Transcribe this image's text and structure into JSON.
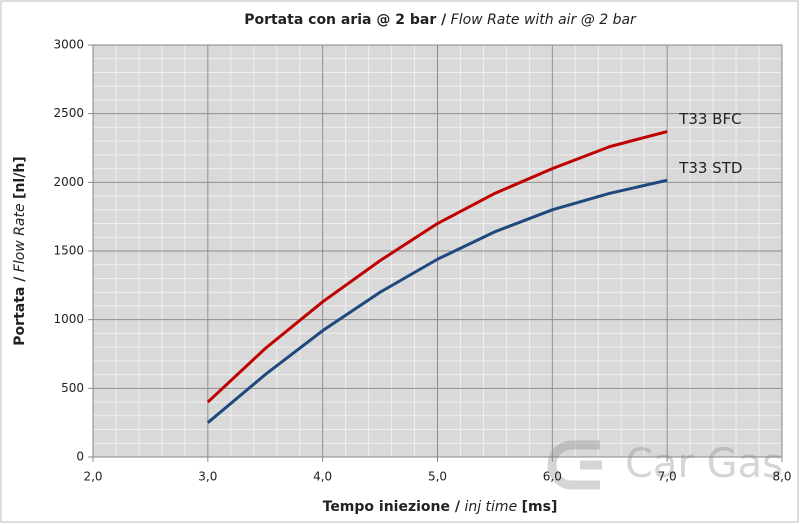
{
  "chart_data": {
    "type": "line",
    "title": {
      "main": "Portata con aria @ 2 bar /",
      "italic": "Flow Rate with air @ 2 bar"
    },
    "x_label": {
      "main": "Tempo iniezione /",
      "italic": "inj time",
      "unit": "[ms]"
    },
    "y_label": {
      "main": "Portata /",
      "italic": "Flow Rate",
      "unit": "[nl/h]"
    },
    "x": [
      3.0,
      3.5,
      4.0,
      4.5,
      5.0,
      5.5,
      6.0,
      6.5,
      7.0
    ],
    "series": [
      {
        "name": "T33 BFC",
        "color": "#c00000",
        "values": [
          400,
          790,
          1130,
          1430,
          1700,
          1920,
          2100,
          2260,
          2370
        ]
      },
      {
        "name": "T33 STD",
        "color": "#1f497d",
        "values": [
          250,
          600,
          920,
          1200,
          1440,
          1640,
          1800,
          1920,
          2015
        ]
      }
    ],
    "xlim": [
      2,
      8
    ],
    "xticks": [
      {
        "value": 2,
        "label": "2,0"
      },
      {
        "value": 3,
        "label": "3,0"
      },
      {
        "value": 4,
        "label": "4,0"
      },
      {
        "value": 5,
        "label": "5,0"
      },
      {
        "value": 6,
        "label": "6,0"
      },
      {
        "value": 7,
        "label": "7,0"
      },
      {
        "value": 8,
        "label": "8,0"
      }
    ],
    "ylim": [
      0,
      3000
    ],
    "yticks": [
      0,
      500,
      1000,
      1500,
      2000,
      2500,
      3000
    ],
    "grid": true,
    "minor_grid_step": {
      "x": 0.2,
      "y": 100
    },
    "watermark": "Car Gas"
  }
}
